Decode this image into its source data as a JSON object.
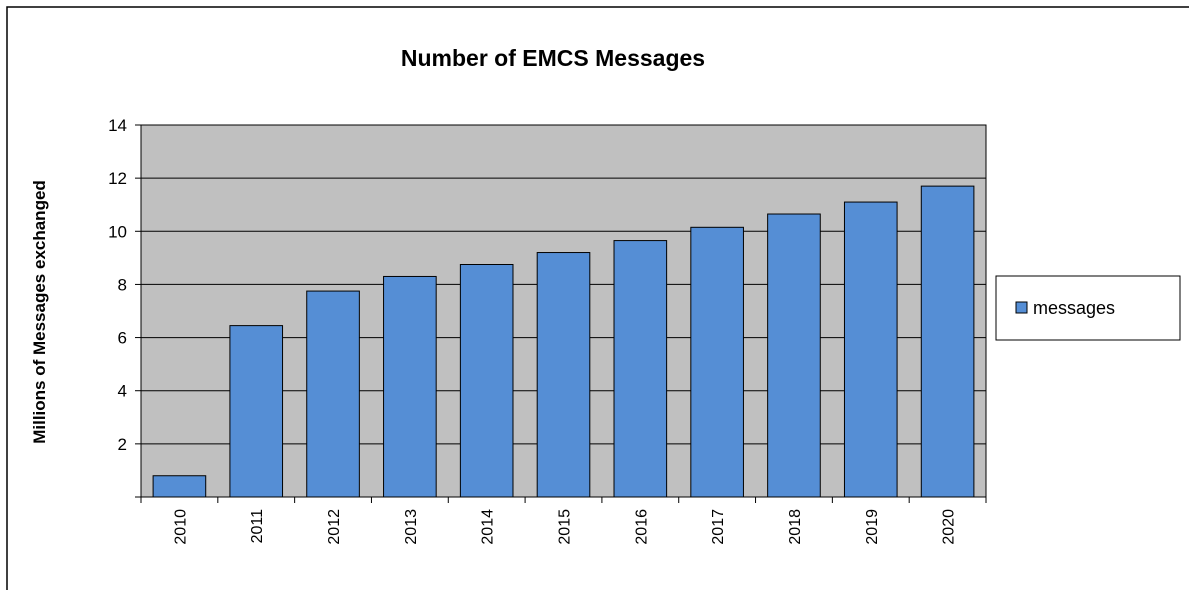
{
  "chart_data": {
    "type": "bar",
    "title": "Number of EMCS Messages",
    "xlabel": "",
    "ylabel": "Millions of Messages exchanged",
    "categories": [
      "2010",
      "2011",
      "2012",
      "2013",
      "2014",
      "2015",
      "2016",
      "2017",
      "2018",
      "2019",
      "2020"
    ],
    "series": [
      {
        "name": "messages",
        "values": [
          0.8,
          6.45,
          7.75,
          8.3,
          8.75,
          9.2,
          9.65,
          10.15,
          10.65,
          11.1,
          11.7
        ]
      }
    ],
    "ylim": [
      0,
      14
    ],
    "yticks": [
      2,
      4,
      6,
      8,
      10,
      12,
      14
    ],
    "grid": true,
    "legend_position": "right",
    "colors": {
      "bar_fill": "#558ed5",
      "bar_stroke": "#000000",
      "plot_background": "#c0c0c0",
      "gridline": "#000000"
    }
  }
}
